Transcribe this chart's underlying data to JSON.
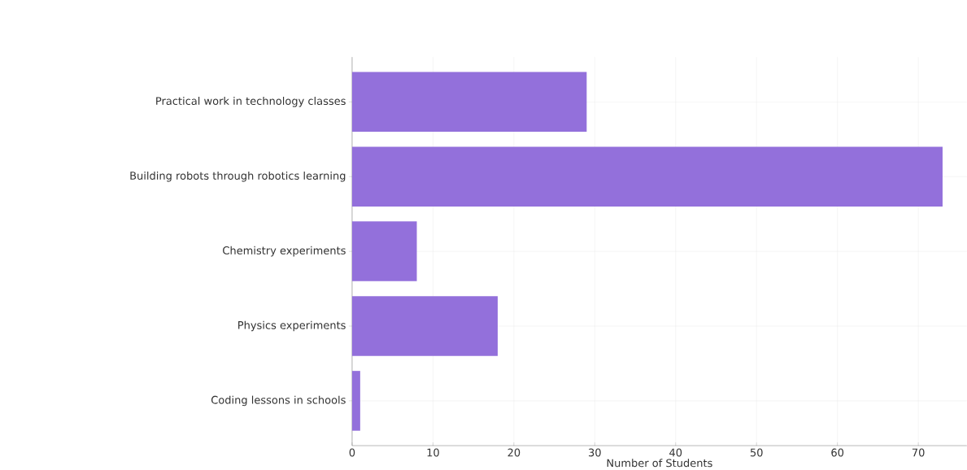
{
  "chart_data": {
    "type": "bar",
    "orientation": "horizontal",
    "xlabel": "Number of Students",
    "categories": [
      "Practical work in technology classes",
      "Building robots through robotics learning",
      "Chemistry experiments",
      "Physics experiments",
      "Coding lessons in schools"
    ],
    "values": [
      29,
      73,
      8,
      18,
      1
    ],
    "color": "#9370db",
    "xlim": [
      0,
      76
    ],
    "xticks": [
      0,
      10,
      20,
      30,
      40,
      50,
      60,
      70
    ],
    "grid": true
  }
}
